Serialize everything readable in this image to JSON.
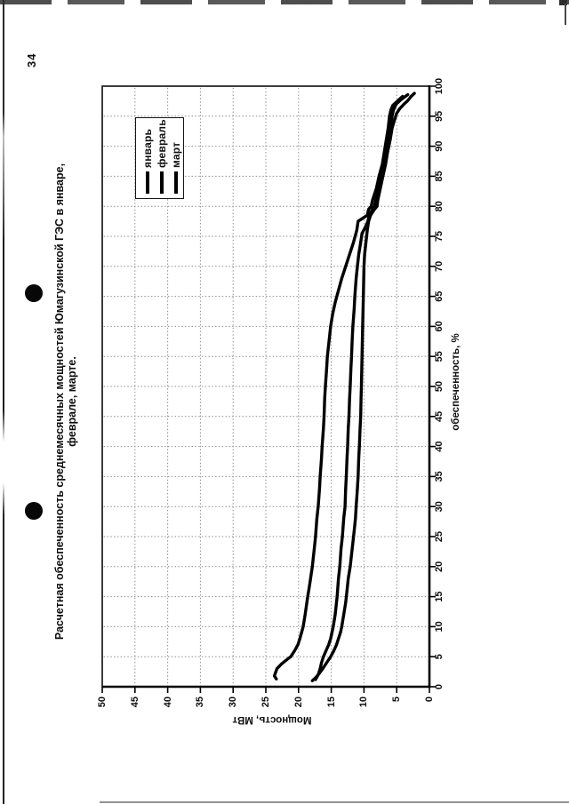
{
  "page": {
    "number": "34"
  },
  "title": {
    "line1": "Расчетная обеспеченность среднемесячных мощностей Юмагузинской ГЭС в январе,",
    "line2": "феврале, марте."
  },
  "colors": {
    "line": "#000000",
    "grid": "#8e8e8e",
    "frame": "#1a1a1a",
    "paper": "#ffffff"
  },
  "chart_data": {
    "type": "line",
    "title": "Расчетная обеспеченность среднемесячных мощностей Юмагузинской ГЭС в январе, феврале, марте.",
    "xlabel": "обеспеченность, %",
    "ylabel": "Мощность, МВт",
    "xlim": [
      0,
      100
    ],
    "ylim": [
      0,
      50
    ],
    "x_ticks": [
      0,
      5,
      10,
      15,
      20,
      25,
      30,
      35,
      40,
      45,
      50,
      55,
      60,
      65,
      70,
      75,
      80,
      85,
      90,
      95,
      100
    ],
    "y_ticks": [
      0,
      5,
      10,
      15,
      20,
      25,
      30,
      35,
      40,
      45,
      50
    ],
    "grid": "dotted every 5 units on both axes",
    "legend_position": "top-right inside plot",
    "series": [
      {
        "name": "январь",
        "color": "#000000",
        "points": [
          [
            1.3,
            23.4
          ],
          [
            1.8,
            23.7
          ],
          [
            3,
            23.3
          ],
          [
            3.8,
            22.6
          ],
          [
            4.5,
            21.8
          ],
          [
            5,
            21.2
          ],
          [
            6,
            20.6
          ],
          [
            7,
            20.1
          ],
          [
            8,
            19.8
          ],
          [
            10,
            19.3
          ],
          [
            12,
            19.0
          ],
          [
            15,
            18.6
          ],
          [
            17,
            18.3
          ],
          [
            20,
            17.9
          ],
          [
            23,
            17.6
          ],
          [
            25,
            17.4
          ],
          [
            28,
            17.2
          ],
          [
            30,
            17.0
          ],
          [
            33,
            16.8
          ],
          [
            35,
            16.7
          ],
          [
            38,
            16.5
          ],
          [
            40,
            16.4
          ],
          [
            43,
            16.2
          ],
          [
            45,
            16.1
          ],
          [
            48,
            16.0
          ],
          [
            50,
            15.9
          ],
          [
            53,
            15.7
          ],
          [
            55,
            15.6
          ],
          [
            57,
            15.4
          ],
          [
            60,
            15.1
          ],
          [
            62,
            14.8
          ],
          [
            64,
            14.4
          ],
          [
            66,
            13.9
          ],
          [
            68,
            13.4
          ],
          [
            70,
            12.8
          ],
          [
            72,
            12.2
          ],
          [
            74,
            11.6
          ],
          [
            76,
            11.1
          ],
          [
            77.5,
            10.9
          ],
          [
            78,
            10.2
          ],
          [
            78.5,
            9.5
          ],
          [
            79.5,
            9.3
          ],
          [
            80,
            8.9
          ],
          [
            81,
            8.7
          ],
          [
            83,
            8.1
          ],
          [
            85,
            7.7
          ],
          [
            87,
            7.2
          ],
          [
            89,
            6.9
          ],
          [
            91,
            6.6
          ],
          [
            93,
            6.3
          ],
          [
            95,
            6.1
          ],
          [
            96,
            5.9
          ],
          [
            96.8,
            5.6
          ],
          [
            97.4,
            5.0
          ],
          [
            98,
            4.4
          ],
          [
            98.3,
            4.1
          ]
        ]
      },
      {
        "name": "февраль",
        "color": "#000000",
        "points": [
          [
            1.2,
            17.4
          ],
          [
            2,
            17.0
          ],
          [
            3,
            16.7
          ],
          [
            4,
            16.5
          ],
          [
            5,
            16.2
          ],
          [
            6,
            15.8
          ],
          [
            7,
            15.4
          ],
          [
            8,
            15.1
          ],
          [
            10,
            14.7
          ],
          [
            12,
            14.4
          ],
          [
            15,
            14.1
          ],
          [
            18,
            13.9
          ],
          [
            20,
            13.7
          ],
          [
            23,
            13.5
          ],
          [
            25,
            13.3
          ],
          [
            28,
            13.1
          ],
          [
            30,
            12.9
          ],
          [
            33,
            12.8
          ],
          [
            35,
            12.7
          ],
          [
            38,
            12.6
          ],
          [
            40,
            12.5
          ],
          [
            43,
            12.4
          ],
          [
            45,
            12.3
          ],
          [
            48,
            12.2
          ],
          [
            50,
            12.1
          ],
          [
            53,
            12.0
          ],
          [
            55,
            11.9
          ],
          [
            58,
            11.8
          ],
          [
            60,
            11.7
          ],
          [
            63,
            11.5
          ],
          [
            65,
            11.4
          ],
          [
            68,
            11.2
          ],
          [
            70,
            11.0
          ],
          [
            72,
            10.8
          ],
          [
            74,
            10.5
          ],
          [
            75.5,
            10.3
          ],
          [
            76.5,
            9.8
          ],
          [
            77.5,
            9.4
          ],
          [
            78.5,
            9.2
          ],
          [
            79.5,
            8.7
          ],
          [
            80,
            8.4
          ],
          [
            81,
            8.2
          ],
          [
            83,
            7.7
          ],
          [
            85,
            7.4
          ],
          [
            87,
            7.0
          ],
          [
            89,
            6.7
          ],
          [
            91,
            6.3
          ],
          [
            93,
            6.0
          ],
          [
            95,
            5.7
          ],
          [
            96,
            5.5
          ],
          [
            97,
            5.1
          ],
          [
            97.6,
            4.5
          ],
          [
            98.2,
            3.8
          ],
          [
            98.6,
            3.3
          ]
        ]
      },
      {
        "name": "март",
        "color": "#000000",
        "points": [
          [
            1.0,
            17.9
          ],
          [
            1.5,
            17.4
          ],
          [
            2,
            17.0
          ],
          [
            3,
            16.3
          ],
          [
            4,
            15.7
          ],
          [
            5,
            15.1
          ],
          [
            6,
            14.6
          ],
          [
            7,
            14.2
          ],
          [
            8,
            13.9
          ],
          [
            9,
            13.6
          ],
          [
            10,
            13.4
          ],
          [
            12,
            13.1
          ],
          [
            14,
            12.8
          ],
          [
            16,
            12.6
          ],
          [
            18,
            12.4
          ],
          [
            20,
            12.1
          ],
          [
            22,
            11.9
          ],
          [
            24,
            11.7
          ],
          [
            26,
            11.5
          ],
          [
            28,
            11.3
          ],
          [
            30,
            11.2
          ],
          [
            33,
            11.0
          ],
          [
            35,
            10.9
          ],
          [
            38,
            10.8
          ],
          [
            40,
            10.7
          ],
          [
            43,
            10.6
          ],
          [
            45,
            10.5
          ],
          [
            48,
            10.45
          ],
          [
            50,
            10.4
          ],
          [
            55,
            10.3
          ],
          [
            60,
            10.2
          ],
          [
            65,
            10.1
          ],
          [
            70,
            10.0
          ],
          [
            72,
            9.9
          ],
          [
            74,
            9.7
          ],
          [
            76,
            9.5
          ],
          [
            77.5,
            9.3
          ],
          [
            78.5,
            9.0
          ],
          [
            79.5,
            8.4
          ],
          [
            80,
            8.0
          ],
          [
            81,
            7.9
          ],
          [
            83,
            7.5
          ],
          [
            85,
            7.1
          ],
          [
            87,
            6.7
          ],
          [
            89,
            6.4
          ],
          [
            91,
            6.0
          ],
          [
            93,
            5.7
          ],
          [
            94.5,
            5.3
          ],
          [
            95.5,
            5.0
          ],
          [
            96.3,
            4.5
          ],
          [
            97,
            3.9
          ],
          [
            97.6,
            3.3
          ],
          [
            98.3,
            2.8
          ],
          [
            98.8,
            2.3
          ]
        ]
      }
    ]
  }
}
